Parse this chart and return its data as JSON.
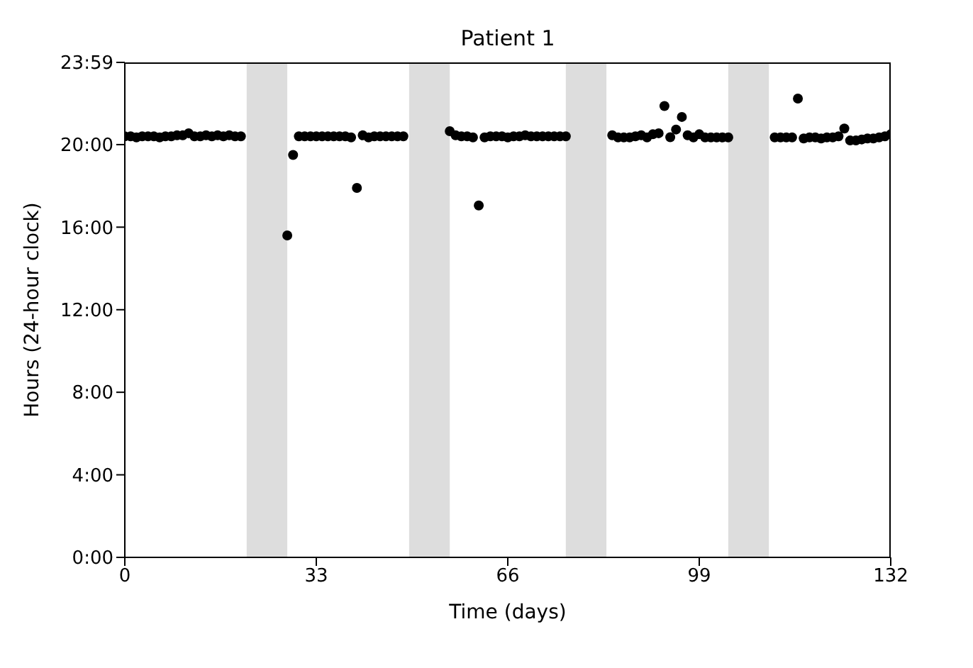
{
  "chart_data": {
    "type": "scatter",
    "title": "Patient 1",
    "xlabel": "Time (days)",
    "ylabel": "Hours (24-hour clock)",
    "x": [
      0,
      1,
      2,
      3,
      4,
      5,
      6,
      7,
      8,
      9,
      10,
      11,
      12,
      13,
      14,
      15,
      16,
      17,
      18,
      19,
      20,
      28,
      29,
      30,
      31,
      32,
      33,
      34,
      35,
      36,
      37,
      38,
      39,
      40,
      41,
      42,
      43,
      44,
      45,
      46,
      47,
      48,
      56,
      57,
      58,
      59,
      60,
      61,
      62,
      63,
      64,
      65,
      66,
      67,
      68,
      69,
      70,
      71,
      72,
      73,
      74,
      75,
      76,
      84,
      85,
      86,
      87,
      88,
      89,
      90,
      91,
      92,
      93,
      94,
      95,
      96,
      97,
      98,
      99,
      100,
      101,
      102,
      103,
      104,
      112,
      113,
      114,
      115,
      116,
      117,
      118,
      119,
      120,
      121,
      122,
      123,
      124,
      125,
      126,
      127,
      128,
      129,
      130,
      131,
      132
    ],
    "values": [
      20.4,
      20.4,
      20.35,
      20.4,
      20.4,
      20.4,
      20.35,
      20.4,
      20.4,
      20.45,
      20.45,
      20.55,
      20.4,
      20.4,
      20.45,
      20.4,
      20.45,
      20.4,
      20.45,
      20.4,
      20.4,
      15.6,
      19.5,
      20.4,
      20.4,
      20.4,
      20.4,
      20.4,
      20.4,
      20.4,
      20.4,
      20.4,
      20.35,
      17.9,
      20.45,
      20.35,
      20.4,
      20.4,
      20.4,
      20.4,
      20.4,
      20.4,
      20.65,
      20.45,
      20.4,
      20.4,
      20.35,
      17.05,
      20.35,
      20.4,
      20.4,
      20.4,
      20.35,
      20.4,
      20.4,
      20.45,
      20.4,
      20.4,
      20.4,
      20.4,
      20.4,
      20.4,
      20.4,
      20.45,
      20.35,
      20.35,
      20.35,
      20.4,
      20.45,
      20.35,
      20.5,
      20.55,
      21.87,
      20.36,
      20.73,
      21.34,
      20.45,
      20.35,
      20.5,
      20.35,
      20.35,
      20.35,
      20.35,
      20.35,
      20.35,
      20.35,
      20.35,
      20.35,
      22.23,
      20.3,
      20.35,
      20.35,
      20.3,
      20.35,
      20.35,
      20.4,
      20.78,
      20.2,
      20.2,
      20.25,
      20.3,
      20.3,
      20.35,
      20.4,
      20.5
    ],
    "color": "#000000",
    "marker": "circle",
    "grid": false,
    "xlim": [
      0,
      132
    ],
    "xticks": [
      0,
      33,
      66,
      99,
      132
    ],
    "ylim": [
      0,
      23.983
    ],
    "yticks": [
      {
        "value": 0,
        "label": "0:00"
      },
      {
        "value": 4,
        "label": "4:00"
      },
      {
        "value": 8,
        "label": "8:00"
      },
      {
        "value": 12,
        "label": "12:00"
      },
      {
        "value": 16,
        "label": "16:00"
      },
      {
        "value": 20,
        "label": "20:00"
      },
      {
        "value": 23.983,
        "label": "23:59"
      }
    ],
    "bands": [
      {
        "axis": "x",
        "from": 21,
        "to": 28,
        "color": "#dddddd"
      },
      {
        "axis": "x",
        "from": 49,
        "to": 56,
        "color": "#dddddd"
      },
      {
        "axis": "x",
        "from": 76,
        "to": 83,
        "color": "#dddddd"
      },
      {
        "axis": "x",
        "from": 104,
        "to": 111,
        "color": "#dddddd"
      }
    ]
  }
}
